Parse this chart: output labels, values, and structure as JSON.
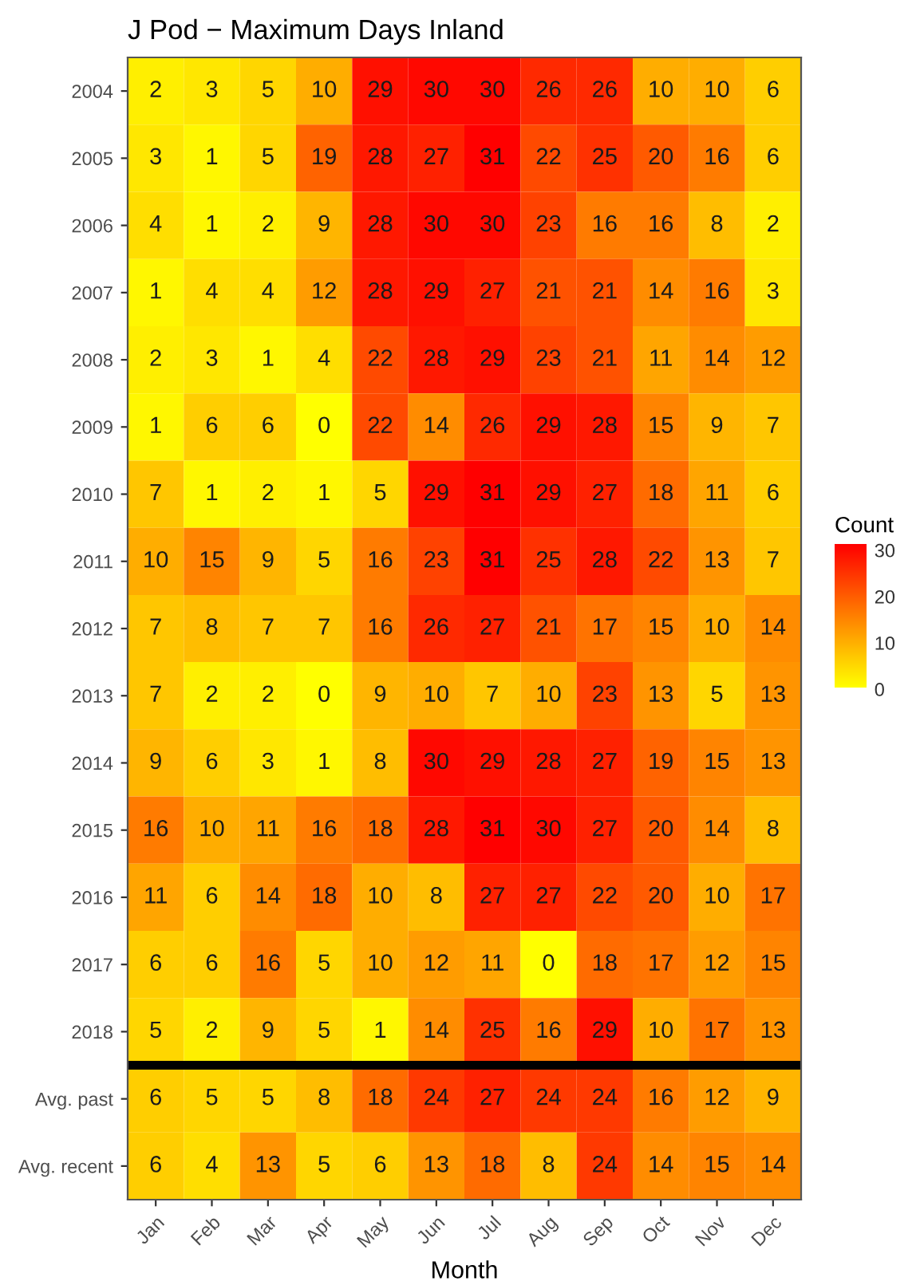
{
  "chart_data": {
    "type": "heatmap",
    "title": "J Pod − Maximum Days Inland",
    "xlabel": "Month",
    "clabel": "Count",
    "categories": [
      "Jan",
      "Feb",
      "Mar",
      "Apr",
      "May",
      "Jun",
      "Jul",
      "Aug",
      "Sep",
      "Oct",
      "Nov",
      "Dec"
    ],
    "y_categories": [
      "2004",
      "2005",
      "2006",
      "2007",
      "2008",
      "2009",
      "2010",
      "2011",
      "2012",
      "2013",
      "2014",
      "2015",
      "2016",
      "2017",
      "2018",
      "Avg. past",
      "Avg. recent"
    ],
    "cells": [
      [
        2,
        3,
        5,
        10,
        29,
        30,
        30,
        26,
        26,
        10,
        10,
        6
      ],
      [
        3,
        1,
        5,
        19,
        28,
        27,
        31,
        22,
        25,
        20,
        16,
        6
      ],
      [
        4,
        1,
        2,
        9,
        28,
        30,
        30,
        23,
        16,
        16,
        8,
        2
      ],
      [
        1,
        4,
        4,
        12,
        28,
        29,
        27,
        21,
        21,
        14,
        16,
        3
      ],
      [
        2,
        3,
        1,
        4,
        22,
        28,
        29,
        23,
        21,
        11,
        14,
        12
      ],
      [
        1,
        6,
        6,
        0,
        22,
        14,
        26,
        29,
        28,
        15,
        9,
        7
      ],
      [
        7,
        1,
        2,
        1,
        5,
        29,
        31,
        29,
        27,
        18,
        11,
        6
      ],
      [
        10,
        15,
        9,
        5,
        16,
        23,
        31,
        25,
        28,
        22,
        13,
        7
      ],
      [
        7,
        8,
        7,
        7,
        16,
        26,
        27,
        21,
        17,
        15,
        10,
        14
      ],
      [
        7,
        2,
        2,
        0,
        9,
        10,
        7,
        10,
        23,
        13,
        5,
        13
      ],
      [
        9,
        6,
        3,
        1,
        8,
        30,
        29,
        28,
        27,
        19,
        15,
        13
      ],
      [
        16,
        10,
        11,
        16,
        18,
        28,
        31,
        30,
        27,
        20,
        14,
        8
      ],
      [
        11,
        6,
        14,
        18,
        10,
        8,
        27,
        27,
        22,
        20,
        10,
        17
      ],
      [
        6,
        6,
        16,
        5,
        10,
        12,
        11,
        0,
        18,
        17,
        12,
        15
      ],
      [
        5,
        2,
        9,
        5,
        1,
        14,
        25,
        16,
        29,
        10,
        17,
        13
      ],
      [
        6,
        5,
        5,
        8,
        18,
        24,
        27,
        24,
        24,
        16,
        12,
        9
      ],
      [
        6,
        4,
        13,
        5,
        6,
        13,
        18,
        8,
        24,
        14,
        15,
        14
      ]
    ],
    "clim": [
      0,
      31
    ],
    "cticks": [
      0,
      10,
      20,
      30
    ],
    "data_labels": true
  }
}
